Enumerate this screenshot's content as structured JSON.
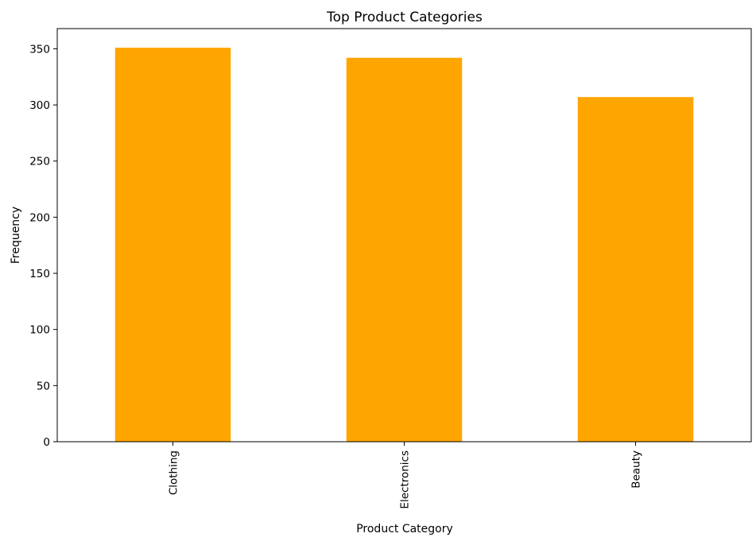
{
  "chart_data": {
    "type": "bar",
    "title": "Top Product Categories",
    "xlabel": "Product Category",
    "ylabel": "Frequency",
    "categories": [
      "Clothing",
      "Electronics",
      "Beauty"
    ],
    "values": [
      351,
      342,
      307
    ],
    "ylim": [
      0,
      368
    ],
    "yticks": [
      0,
      50,
      100,
      150,
      200,
      250,
      300,
      350
    ],
    "bar_color": "#FFA500",
    "grid": false,
    "xtick_rotation": 90
  }
}
